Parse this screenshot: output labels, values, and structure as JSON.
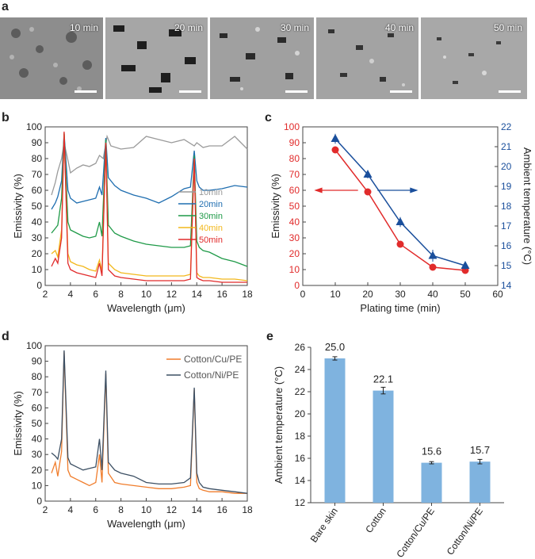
{
  "panel_letters": {
    "a": "a",
    "b": "b",
    "c": "c",
    "d": "d",
    "e": "e"
  },
  "sem_images": [
    {
      "label": "10 min"
    },
    {
      "label": "20 min"
    },
    {
      "label": "30 min"
    },
    {
      "label": "40 min"
    },
    {
      "label": "50 min"
    }
  ],
  "chart_data": [
    {
      "id": "b",
      "type": "line",
      "xlabel": "Wavelength (μm)",
      "ylabel": "Emissivity (%)",
      "xlim": [
        2,
        18
      ],
      "ylim": [
        0,
        100
      ],
      "xticks": [
        2,
        4,
        6,
        8,
        10,
        12,
        14,
        16,
        18
      ],
      "yticks": [
        0,
        10,
        20,
        30,
        40,
        50,
        60,
        70,
        80,
        90,
        100
      ],
      "legend_position": "right",
      "series": [
        {
          "name": "10min",
          "color": "#9a9a9a",
          "x": [
            2.5,
            2.8,
            3.0,
            3.3,
            3.5,
            3.8,
            4.0,
            4.5,
            5.0,
            5.5,
            6.0,
            6.3,
            6.6,
            6.9,
            7.2,
            8,
            9,
            10,
            11,
            12,
            13,
            13.8,
            14,
            14.5,
            15,
            16,
            17,
            18
          ],
          "y": [
            57,
            65,
            72,
            80,
            90,
            79,
            71,
            74,
            76,
            75,
            77,
            82,
            80,
            94,
            88,
            86,
            87,
            94,
            92,
            90,
            92,
            88,
            90,
            87,
            88,
            88,
            94,
            86
          ]
        },
        {
          "name": "20min",
          "color": "#1f6eb0",
          "x": [
            2.5,
            2.8,
            3.0,
            3.3,
            3.5,
            3.8,
            4.0,
            4.5,
            5.0,
            5.5,
            6.0,
            6.3,
            6.5,
            6.8,
            7.0,
            7.5,
            8,
            9,
            10,
            11,
            12,
            13,
            13.5,
            13.8,
            14,
            14.2,
            14.5,
            15,
            16,
            17,
            18
          ],
          "y": [
            48,
            52,
            56,
            66,
            96,
            60,
            55,
            52,
            53,
            54,
            55,
            62,
            57,
            93,
            68,
            63,
            60,
            57,
            55,
            52,
            56,
            61,
            62,
            85,
            66,
            62,
            60,
            60,
            61,
            63,
            62
          ]
        },
        {
          "name": "30min",
          "color": "#1f9a48",
          "x": [
            2.5,
            2.8,
            3.0,
            3.3,
            3.5,
            3.8,
            4.0,
            4.5,
            5.0,
            5.5,
            6.0,
            6.3,
            6.5,
            6.8,
            7.0,
            7.5,
            8,
            9,
            10,
            11,
            12,
            13,
            13.5,
            13.8,
            14,
            14.2,
            14.5,
            15,
            16,
            17,
            18
          ],
          "y": [
            33,
            36,
            38,
            55,
            96,
            40,
            35,
            33,
            31,
            30,
            31,
            40,
            31,
            92,
            38,
            33,
            31,
            28,
            26,
            25,
            24,
            24,
            25,
            82,
            28,
            24,
            22,
            21,
            17,
            15,
            12
          ]
        },
        {
          "name": "40min",
          "color": "#f2b81c",
          "x": [
            2.5,
            2.8,
            3.0,
            3.3,
            3.5,
            3.8,
            4.0,
            4.5,
            5.0,
            5.5,
            6.0,
            6.3,
            6.5,
            6.8,
            7.0,
            7.5,
            8,
            9,
            10,
            11,
            12,
            13,
            13.5,
            13.8,
            14,
            14.2,
            14.5,
            15,
            16,
            17,
            18
          ],
          "y": [
            20,
            22,
            18,
            35,
            96,
            20,
            15,
            13,
            12,
            10,
            9,
            16,
            9,
            90,
            14,
            10,
            8,
            7,
            6,
            6,
            6,
            6,
            7,
            80,
            8,
            6,
            5,
            5,
            4,
            4,
            3
          ]
        },
        {
          "name": "50min",
          "color": "#e12b2b",
          "x": [
            2.5,
            2.8,
            3.0,
            3.3,
            3.5,
            3.8,
            4.0,
            4.5,
            5.0,
            5.5,
            6.0,
            6.3,
            6.5,
            6.8,
            7.0,
            7.5,
            8,
            9,
            10,
            11,
            12,
            13,
            13.5,
            13.8,
            14,
            14.2,
            14.5,
            15,
            16,
            17,
            18
          ],
          "y": [
            12,
            17,
            14,
            30,
            97,
            14,
            10,
            8,
            7,
            6,
            5,
            14,
            6,
            90,
            10,
            6,
            5,
            4,
            3,
            3,
            3,
            3,
            4,
            80,
            5,
            4,
            3,
            3,
            2,
            2,
            2
          ]
        }
      ]
    },
    {
      "id": "c",
      "type": "line",
      "xlabel": "Plating time (min)",
      "ylabel": "Emissivity (%)",
      "y2label": "Ambient temperature (°C)",
      "xlim": [
        0,
        60
      ],
      "ylim": [
        0,
        100
      ],
      "y2lim": [
        14,
        22
      ],
      "xticks": [
        0,
        10,
        20,
        30,
        40,
        50,
        60
      ],
      "yticks": [
        0,
        10,
        20,
        30,
        40,
        50,
        60,
        70,
        80,
        90,
        100
      ],
      "y2ticks": [
        14,
        15,
        16,
        17,
        18,
        19,
        20,
        21,
        22
      ],
      "series": [
        {
          "name": "Emissivity",
          "axis": "left",
          "color": "#e12b2b",
          "marker": "circle",
          "x": [
            10,
            20,
            30,
            40,
            50
          ],
          "y": [
            85.5,
            59,
            26,
            11.5,
            9.5
          ]
        },
        {
          "name": "Ambient temperature",
          "axis": "right",
          "color": "#1a4f9c",
          "marker": "triangle",
          "x": [
            10,
            20,
            30,
            40,
            50
          ],
          "y": [
            21.4,
            19.6,
            17.2,
            15.5,
            15.0
          ],
          "err": [
            0.25,
            0.2,
            0.25,
            0.3,
            0.2
          ]
        }
      ]
    },
    {
      "id": "d",
      "type": "line",
      "xlabel": "Wavelength (μm)",
      "ylabel": "Emissivity (%)",
      "xlim": [
        2,
        18
      ],
      "ylim": [
        0,
        100
      ],
      "xticks": [
        2,
        4,
        6,
        8,
        10,
        12,
        14,
        16,
        18
      ],
      "yticks": [
        0,
        10,
        20,
        30,
        40,
        50,
        60,
        70,
        80,
        90,
        100
      ],
      "legend_position": "top-right",
      "series": [
        {
          "name": "Cotton/Cu/PE",
          "color": "#f07d2c",
          "x": [
            2.5,
            2.8,
            3.0,
            3.3,
            3.5,
            3.8,
            4.0,
            4.5,
            5.0,
            5.5,
            6.0,
            6.3,
            6.5,
            6.8,
            7.0,
            7.5,
            8,
            9,
            10,
            11,
            12,
            13,
            13.5,
            13.8,
            14,
            14.2,
            14.5,
            15,
            16,
            17,
            18
          ],
          "y": [
            18,
            25,
            16,
            32,
            96,
            20,
            16,
            14,
            12,
            10,
            12,
            30,
            12,
            82,
            18,
            12,
            11,
            10,
            9,
            8,
            8,
            9,
            10,
            72,
            12,
            8,
            7,
            6,
            6,
            5,
            5
          ]
        },
        {
          "name": "Cotton/Ni/PE",
          "color": "#3d5064",
          "x": [
            2.5,
            2.8,
            3.0,
            3.3,
            3.5,
            3.8,
            4.0,
            4.5,
            5.0,
            5.5,
            6.0,
            6.3,
            6.5,
            6.8,
            7.0,
            7.5,
            8,
            9,
            10,
            11,
            12,
            13,
            13.5,
            13.8,
            14,
            14.2,
            14.5,
            15,
            16,
            17,
            18
          ],
          "y": [
            31,
            29,
            27,
            40,
            97,
            28,
            24,
            22,
            20,
            21,
            22,
            40,
            20,
            84,
            25,
            20,
            18,
            16,
            12,
            11,
            11,
            12,
            15,
            73,
            18,
            12,
            9,
            8,
            7,
            6,
            5
          ]
        }
      ]
    },
    {
      "id": "e",
      "type": "bar",
      "ylabel": "Ambient temperature (°C)",
      "ylim": [
        12,
        26
      ],
      "yticks": [
        12,
        14,
        16,
        18,
        20,
        22,
        24,
        26
      ],
      "categories": [
        "Bare skin",
        "Cotton",
        "Cotton/Cu/PE",
        "Cotton/Ni/PE"
      ],
      "values": [
        25.0,
        22.1,
        15.6,
        15.7
      ],
      "value_labels": [
        "25.0",
        "22.1",
        "15.6",
        "15.7"
      ],
      "err": [
        0.15,
        0.3,
        0.1,
        0.2
      ],
      "color": "#7fb3df"
    }
  ]
}
